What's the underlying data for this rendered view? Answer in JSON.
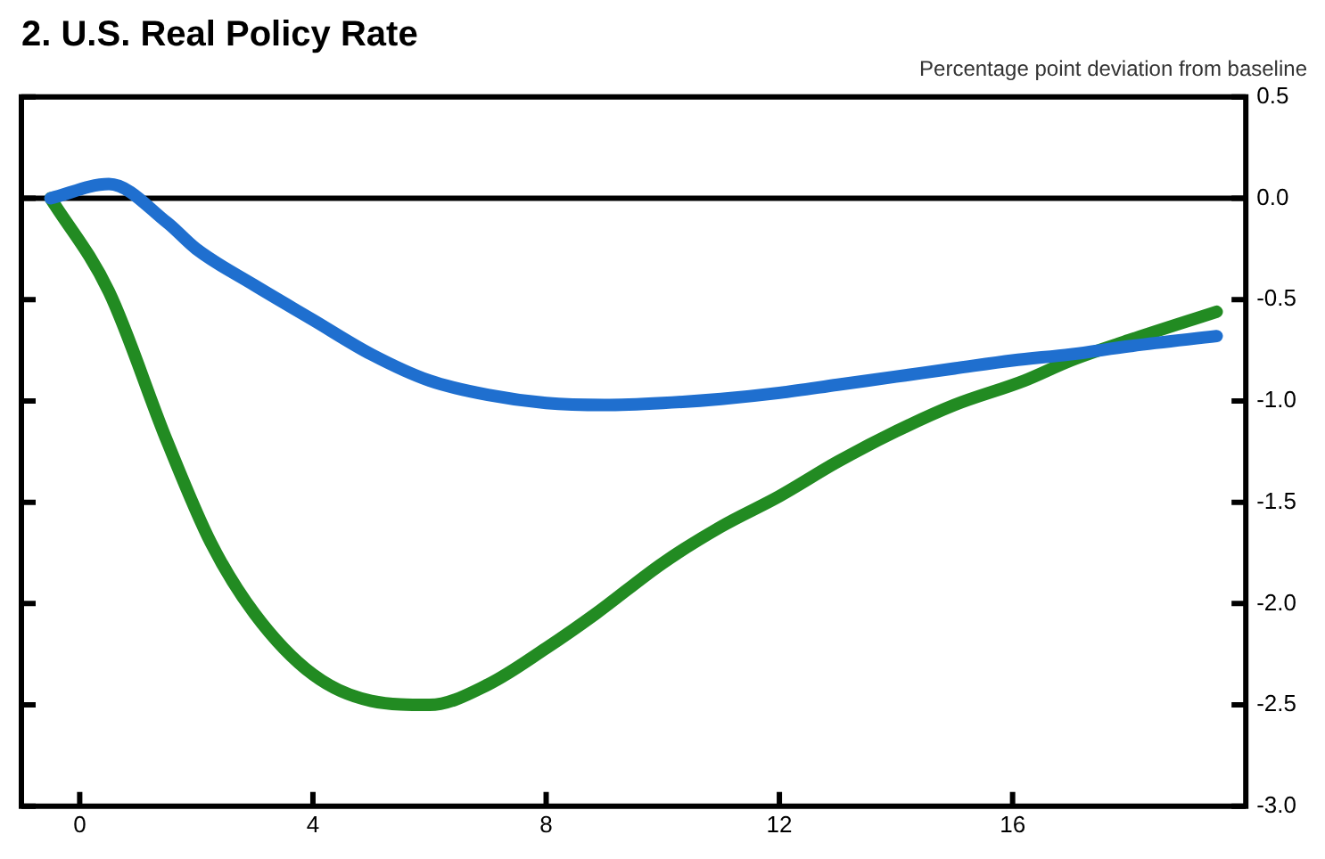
{
  "chart_data": {
    "type": "line",
    "title": "2. U.S. Real Policy Rate",
    "subtitle": "Percentage point deviation from baseline",
    "xlim": [
      -1,
      20
    ],
    "xticks": [
      0,
      4,
      8,
      12,
      16
    ],
    "ylim": [
      -3,
      0.5
    ],
    "yticks": [
      0.5,
      {
        "value": 0,
        "label": "0.0"
      },
      -0.5,
      {
        "value": -1,
        "label": "-1.0"
      },
      -1.5,
      {
        "value": -2,
        "label": "-2.0"
      },
      -2.5,
      {
        "value": -3,
        "label": "-3.0"
      }
    ],
    "grid": false,
    "legend": false,
    "ref_lines": [
      {
        "axis": "y",
        "value": 0,
        "color": "#000000"
      }
    ],
    "series": [
      {
        "color": "#1f6fcf",
        "x": [
          -0.5,
          0.5,
          1.5,
          2,
          3,
          4,
          5,
          6,
          7,
          8,
          9,
          10,
          11,
          12,
          13,
          14,
          15,
          16,
          17,
          18,
          19.5
        ],
        "values": [
          0,
          0.07,
          -0.12,
          -0.25,
          -0.43,
          -0.6,
          -0.77,
          -0.9,
          -0.97,
          -1.01,
          -1.02,
          -1.01,
          -0.99,
          -0.96,
          -0.92,
          -0.88,
          -0.84,
          -0.8,
          -0.77,
          -0.73,
          -0.68
        ]
      },
      {
        "color": "#228b22",
        "x": [
          -0.5,
          0.5,
          1.5,
          2.25,
          3,
          4,
          5,
          6,
          7,
          8,
          8.85,
          10,
          11,
          12,
          13,
          14,
          15,
          16.2,
          17,
          18,
          19.5
        ],
        "values": [
          0,
          -0.46,
          -1.2,
          -1.7,
          -2.05,
          -2.35,
          -2.48,
          -2.5,
          -2.4,
          -2.22,
          -2.05,
          -1.8,
          -1.62,
          -1.47,
          -1.3,
          -1.15,
          -1.02,
          -0.9,
          -0.8,
          -0.7,
          -0.56
        ]
      }
    ]
  }
}
